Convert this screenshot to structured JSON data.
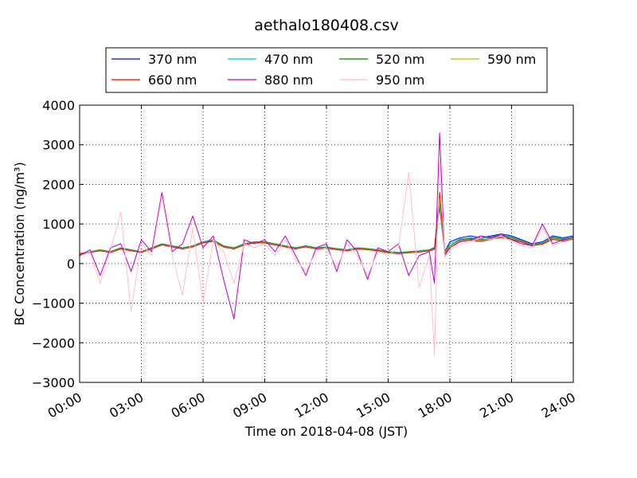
{
  "chart_data": {
    "type": "line",
    "title": "aethalo180408.csv",
    "xlabel": "Time on 2018-04-08 (JST)",
    "ylabel": "BC Concentration (ng/m³)",
    "xlim": [
      "00:00",
      "24:00"
    ],
    "ylim": [
      -3000,
      4000
    ],
    "x_ticks": [
      "00:00",
      "03:00",
      "06:00",
      "09:00",
      "12:00",
      "15:00",
      "18:00",
      "21:00",
      "24:00"
    ],
    "y_ticks": [
      -3000,
      -2000,
      -1000,
      0,
      1000,
      2000,
      3000,
      4000
    ],
    "grid": true,
    "legend_position": "top-center",
    "x": [
      "00:00",
      "00:30",
      "01:00",
      "01:30",
      "02:00",
      "02:30",
      "03:00",
      "03:30",
      "04:00",
      "04:30",
      "05:00",
      "05:30",
      "06:00",
      "06:30",
      "07:00",
      "07:30",
      "08:00",
      "08:30",
      "09:00",
      "09:30",
      "10:00",
      "10:30",
      "11:00",
      "11:30",
      "12:00",
      "12:30",
      "13:00",
      "13:30",
      "14:00",
      "14:30",
      "15:00",
      "15:30",
      "16:00",
      "16:30",
      "17:00",
      "17:15",
      "17:30",
      "17:45",
      "18:00",
      "18:30",
      "19:00",
      "19:30",
      "20:00",
      "20:30",
      "21:00",
      "21:30",
      "22:00",
      "22:30",
      "23:00",
      "23:30",
      "24:00"
    ],
    "series": [
      {
        "name": "370 nm",
        "color": "#0000ff",
        "values": [
          250,
          300,
          350,
          300,
          400,
          350,
          300,
          400,
          500,
          450,
          400,
          450,
          550,
          600,
          450,
          400,
          500,
          550,
          550,
          500,
          450,
          400,
          450,
          400,
          420,
          380,
          350,
          400,
          380,
          350,
          300,
          280,
          300,
          320,
          350,
          400,
          1500,
          300,
          550,
          650,
          700,
          650,
          700,
          750,
          700,
          600,
          500,
          550,
          700,
          650,
          700
        ]
      },
      {
        "name": "470 nm",
        "color": "#00bfbf",
        "values": [
          250,
          300,
          350,
          300,
          400,
          350,
          300,
          400,
          500,
          450,
          400,
          450,
          550,
          600,
          450,
          400,
          500,
          550,
          550,
          500,
          450,
          400,
          450,
          400,
          420,
          380,
          350,
          400,
          380,
          350,
          300,
          280,
          300,
          320,
          350,
          380,
          1400,
          300,
          500,
          620,
          650,
          620,
          680,
          720,
          680,
          580,
          480,
          530,
          680,
          630,
          680
        ]
      },
      {
        "name": "520 nm",
        "color": "#008000",
        "values": [
          250,
          290,
          340,
          300,
          390,
          340,
          300,
          390,
          490,
          440,
          390,
          440,
          540,
          580,
          440,
          390,
          490,
          540,
          540,
          490,
          440,
          390,
          440,
          390,
          410,
          370,
          340,
          390,
          370,
          340,
          290,
          270,
          290,
          310,
          340,
          380,
          1500,
          300,
          450,
          600,
          630,
          600,
          650,
          700,
          650,
          560,
          470,
          510,
          650,
          610,
          650
        ]
      },
      {
        "name": "590 nm",
        "color": "#bfbf00",
        "values": [
          240,
          290,
          330,
          290,
          380,
          330,
          290,
          380,
          480,
          430,
          380,
          430,
          530,
          570,
          430,
          380,
          480,
          530,
          530,
          480,
          430,
          380,
          430,
          380,
          400,
          360,
          330,
          380,
          360,
          330,
          280,
          260,
          280,
          300,
          330,
          370,
          1600,
          280,
          430,
          580,
          610,
          580,
          630,
          680,
          630,
          550,
          460,
          500,
          630,
          590,
          630
        ]
      },
      {
        "name": "660 nm",
        "color": "#ff0000",
        "values": [
          230,
          280,
          320,
          280,
          370,
          320,
          280,
          370,
          470,
          420,
          370,
          420,
          520,
          560,
          420,
          370,
          470,
          520,
          520,
          470,
          420,
          370,
          420,
          370,
          390,
          350,
          320,
          370,
          350,
          320,
          270,
          250,
          270,
          290,
          320,
          360,
          1800,
          250,
          400,
          560,
          590,
          560,
          610,
          660,
          610,
          540,
          450,
          490,
          610,
          570,
          610
        ]
      },
      {
        "name": "880 nm",
        "color": "#bf00bf",
        "values": [
          200,
          350,
          -300,
          400,
          500,
          -200,
          600,
          300,
          1800,
          300,
          500,
          1200,
          400,
          700,
          -400,
          -1400,
          600,
          500,
          600,
          300,
          700,
          200,
          -300,
          400,
          500,
          -200,
          600,
          300,
          -400,
          400,
          300,
          500,
          -300,
          200,
          300,
          -500,
          3300,
          200,
          400,
          550,
          600,
          700,
          650,
          750,
          600,
          500,
          450,
          1000,
          500,
          600,
          650
        ]
      },
      {
        "name": "950 nm",
        "color": "#ffc0cb",
        "values": [
          180,
          300,
          -500,
          350,
          1300,
          -1200,
          500,
          200,
          1700,
          200,
          -800,
          900,
          -1000,
          600,
          300,
          -500,
          500,
          400,
          500,
          200,
          600,
          100,
          -200,
          300,
          400,
          -100,
          500,
          200,
          -300,
          300,
          200,
          400,
          2300,
          -600,
          200,
          -2300,
          2600,
          150,
          350,
          500,
          550,
          650,
          600,
          700,
          550,
          450,
          400,
          900,
          450,
          550,
          600
        ]
      }
    ]
  }
}
